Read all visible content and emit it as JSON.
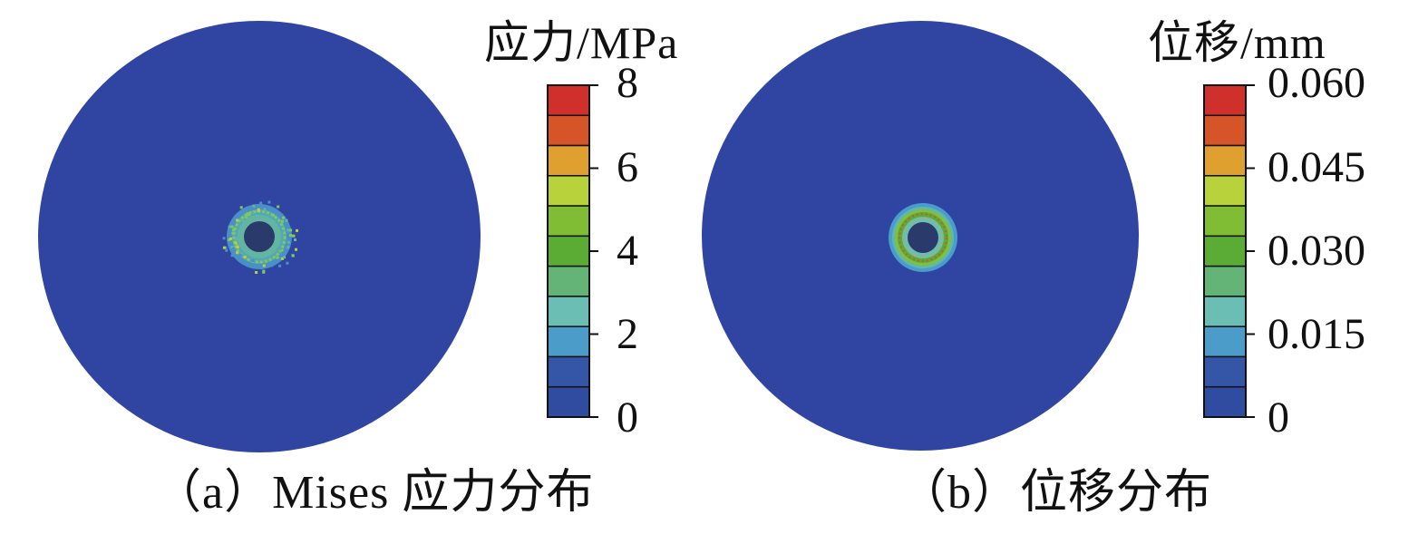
{
  "figures": [
    {
      "id": "a",
      "caption": "（a）Mises 应力分布",
      "colorbar_title": "应力/MPa",
      "tick_labels": [
        "8",
        "6",
        "4",
        "2",
        "0"
      ],
      "range": [
        0,
        8
      ],
      "field": "stress",
      "colors": [
        "#d0302c",
        "#d55428",
        "#e0a030",
        "#b8d23c",
        "#80bc34",
        "#5aac34",
        "#64b478",
        "#6abeb4",
        "#4c9cca",
        "#3556a6",
        "#2f4ca0"
      ],
      "background_color": "#3045a1",
      "hole_color": "#2a3a6a"
    },
    {
      "id": "b",
      "caption": "（b）位移分布",
      "colorbar_title": "位移/mm",
      "tick_labels": [
        "0.060",
        "0.045",
        "0.030",
        "0.015",
        "0"
      ],
      "range": [
        0,
        0.06
      ],
      "field": "displacement",
      "colors": [
        "#d0302c",
        "#d55428",
        "#e0a030",
        "#b8d23c",
        "#80bc34",
        "#5aac34",
        "#64b478",
        "#6abeb4",
        "#4c9cca",
        "#3556a6",
        "#2f4ca0"
      ],
      "background_color": "#3045a1",
      "hole_color": "#2a3a6a"
    }
  ]
}
